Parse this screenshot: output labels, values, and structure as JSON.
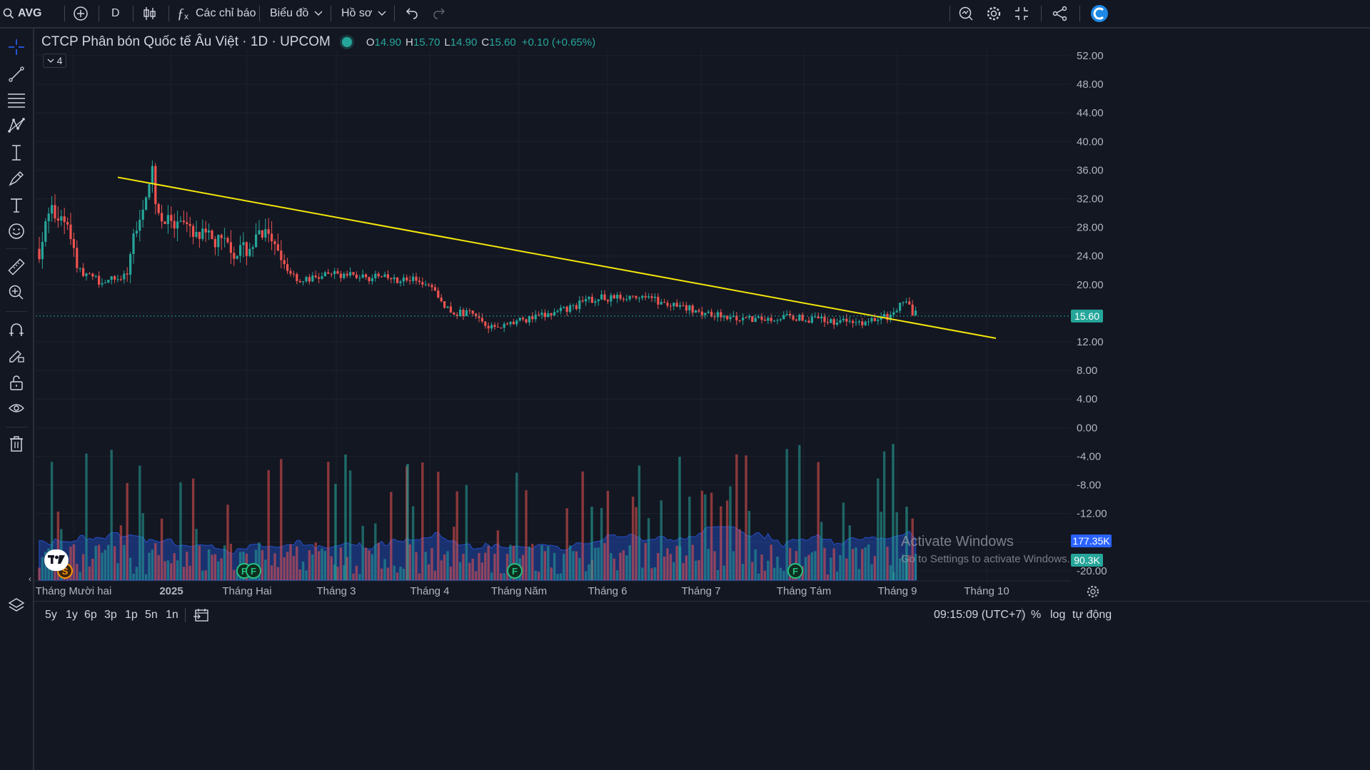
{
  "topbar": {
    "symbol": "AVG",
    "interval": "D",
    "indicators_label": "Các chỉ báo",
    "chart_label": "Biểu đồ",
    "profile_label": "Hồ sơ"
  },
  "legend": {
    "title": "CTCP Phân bón Quốc tế Âu Việt · 1D · UPCOM",
    "o_label": "O",
    "o_value": "14.90",
    "h_label": "H",
    "h_value": "15.70",
    "l_label": "L",
    "l_value": "14.90",
    "c_label": "C",
    "c_value": "15.60",
    "change": "+0.10 (+0.65%)",
    "collapse_count": "4"
  },
  "price_axis": {
    "ticks": [
      "52.00",
      "48.00",
      "44.00",
      "40.00",
      "36.00",
      "32.00",
      "28.00",
      "24.00",
      "20.00",
      "16.00",
      "12.00",
      "8.00",
      "4.00",
      "0.00",
      "-4.00",
      "-8.00",
      "-12.00",
      "-16.00",
      "-20.00"
    ],
    "last_price_tag": "15.60",
    "volume_ma_tag": "177.35K",
    "volume_tag": "90.3K"
  },
  "time_axis": {
    "labels": [
      "Tháng Mười hai",
      "2025",
      "Tháng Hai",
      "Tháng 3",
      "Tháng 4",
      "Tháng Năm",
      "Tháng 6",
      "Tháng 7",
      "Tháng Tám",
      "Tháng 9",
      "Tháng 10"
    ]
  },
  "event_markers": {
    "split": "S",
    "financial": "F"
  },
  "bottombar": {
    "ranges": [
      "5y",
      "1y",
      "6p",
      "3p",
      "1p",
      "5n",
      "1n"
    ],
    "time": "09:15:09 (UTC+7)",
    "percent": "%",
    "log": "log",
    "auto": "tự động"
  },
  "watermark": {
    "line1": "Activate Windows",
    "line2": "Go to Settings to activate Windows."
  },
  "colors": {
    "up": "#26a69a",
    "down": "#ef5350",
    "trendline": "#f5e60a",
    "volume_ma_area": "#2962ff",
    "background": "#131722"
  },
  "chart_data": {
    "type": "candlestick",
    "symbol": "AVG",
    "interval": "1D",
    "ylim": [
      -20,
      54
    ],
    "ohlc_sample": [
      {
        "period": "Tháng Mười hai",
        "open": 29.0,
        "high": 32.5,
        "low": 25.0,
        "close": 26.0
      },
      {
        "period": "Tháng Mười hai (late)",
        "open": 21.0,
        "high": 40.5,
        "low": 20.0,
        "close": 34.0
      },
      {
        "period": "2025",
        "open": 30.0,
        "high": 31.0,
        "low": 25.5,
        "close": 27.0
      },
      {
        "period": "Tháng Hai",
        "open": 26.5,
        "high": 30.5,
        "low": 23.0,
        "close": 24.0
      },
      {
        "period": "Tháng 3",
        "open": 21.0,
        "high": 24.5,
        "low": 19.5,
        "close": 21.0
      },
      {
        "period": "Tháng 4",
        "open": 20.0,
        "high": 21.0,
        "low": 13.0,
        "close": 14.5
      },
      {
        "period": "Tháng Năm",
        "open": 14.5,
        "high": 16.0,
        "low": 13.5,
        "close": 15.5
      },
      {
        "period": "Tháng 6",
        "open": 17.0,
        "high": 20.0,
        "low": 16.5,
        "close": 18.0
      },
      {
        "period": "Tháng 7",
        "open": 16.0,
        "high": 17.0,
        "low": 15.0,
        "close": 15.5
      },
      {
        "period": "Tháng Tám",
        "open": 15.0,
        "high": 16.5,
        "low": 14.5,
        "close": 15.0
      },
      {
        "period": "Tháng 9",
        "open": 14.9,
        "high": 18.5,
        "low": 14.9,
        "close": 15.6
      }
    ],
    "trendline": {
      "start_price": 35.0,
      "end_price": 12.5,
      "from": "Tháng Mười hai",
      "to": "Tháng 10"
    },
    "last_close": 15.6,
    "volume_last": "90.3K",
    "volume_ma": "177.35K"
  }
}
